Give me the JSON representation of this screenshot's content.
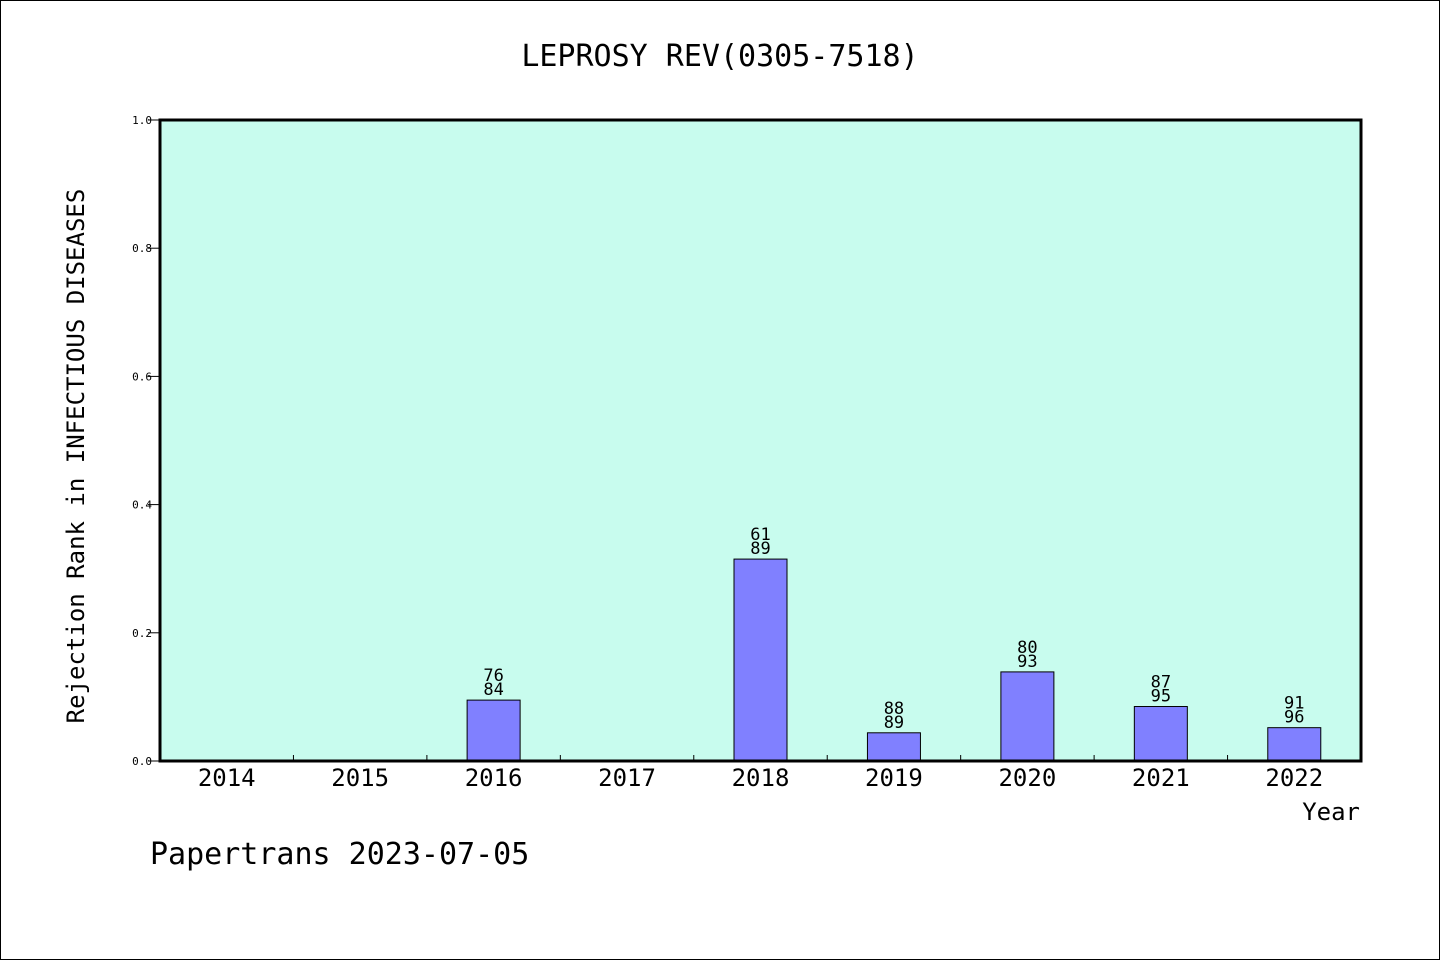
{
  "chart_data": {
    "type": "bar",
    "title": "LEPROSY REV(0305-7518)",
    "xlabel": "Year",
    "ylabel": "Rejection Rank in INFECTIOUS DISEASES",
    "ylim": [
      0,
      1.0
    ],
    "yticks": [
      "0.0",
      "0.2",
      "0.4",
      "0.6",
      "0.8",
      "1.0"
    ],
    "categories": [
      "2014",
      "2015",
      "2016",
      "2017",
      "2018",
      "2019",
      "2020",
      "2021",
      "2022"
    ],
    "values": [
      null,
      null,
      0.095,
      null,
      0.315,
      0.044,
      0.139,
      0.085,
      0.052
    ],
    "labels_top": [
      null,
      null,
      "76",
      null,
      "61",
      "88",
      "80",
      "87",
      "91"
    ],
    "labels_bottom": [
      null,
      null,
      "84",
      null,
      "89",
      "89",
      "93",
      "95",
      "96"
    ],
    "grid": false,
    "colors": {
      "plot_bg": "#c8fcee",
      "bar": "#8080ff",
      "bar_edge": "#000000"
    }
  },
  "footer": {
    "text": "Papertrans 2023-07-05"
  }
}
